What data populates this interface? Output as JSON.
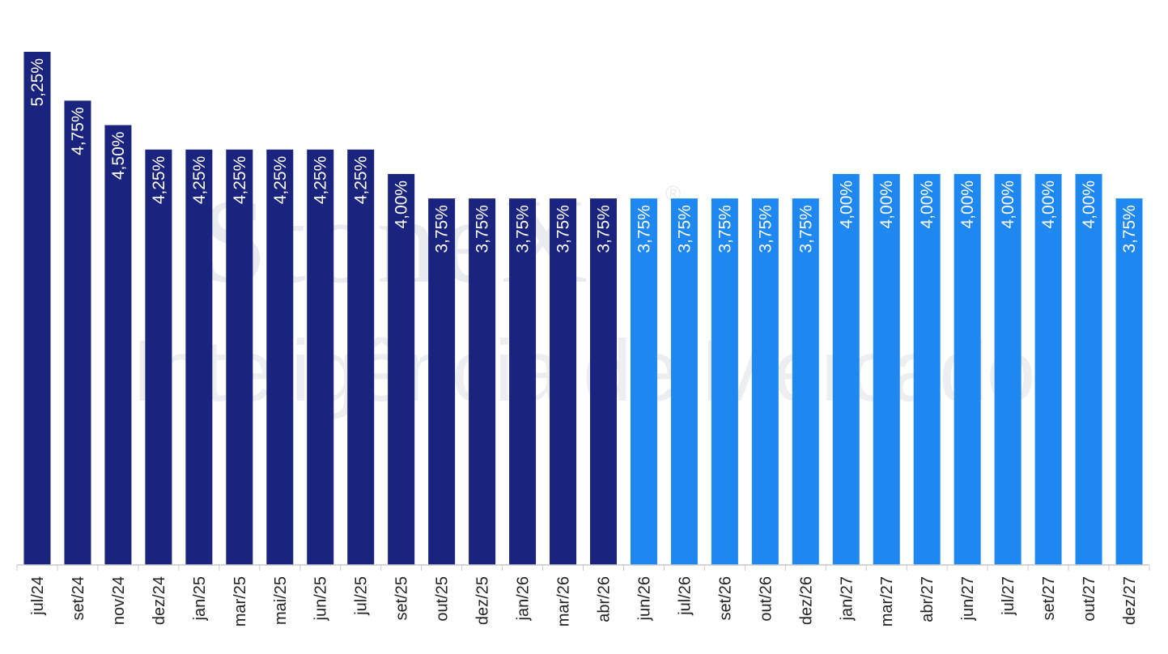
{
  "watermark": {
    "logo": "StoneX",
    "registered": "®",
    "subtitle": "Inteligência de Mercado"
  },
  "colors": {
    "historical": "#1a237e",
    "forecast": "#1e88f0",
    "axis": "#c8c8c8"
  },
  "chart_data": {
    "type": "bar",
    "title": "",
    "xlabel": "",
    "ylabel": "",
    "ylim": [
      0,
      5.25
    ],
    "grid": false,
    "categories": [
      "jul/24",
      "set/24",
      "nov/24",
      "dez/24",
      "jan/25",
      "mar/25",
      "mai/25",
      "jun/25",
      "jul/25",
      "set/25",
      "out/25",
      "dez/25",
      "jan/26",
      "mar/26",
      "abr/26",
      "jun/26",
      "jul/26",
      "set/26",
      "out/26",
      "dez/26",
      "jan/27",
      "mar/27",
      "abr/27",
      "jun/27",
      "jul/27",
      "set/27",
      "out/27",
      "dez/27"
    ],
    "values": [
      5.25,
      4.75,
      4.5,
      4.25,
      4.25,
      4.25,
      4.25,
      4.25,
      4.25,
      4.0,
      3.75,
      3.75,
      3.75,
      3.75,
      3.75,
      3.75,
      3.75,
      3.75,
      3.75,
      3.75,
      4.0,
      4.0,
      4.0,
      4.0,
      4.0,
      4.0,
      4.0,
      3.75
    ],
    "data_labels": [
      "5,25%",
      "4,75%",
      "4,50%",
      "4,25%",
      "4,25%",
      "4,25%",
      "4,25%",
      "4,25%",
      "4,25%",
      "4,00%",
      "3,75%",
      "3,75%",
      "3,75%",
      "3,75%",
      "3,75%",
      "3,75%",
      "3,75%",
      "3,75%",
      "3,75%",
      "3,75%",
      "4,00%",
      "4,00%",
      "4,00%",
      "4,00%",
      "4,00%",
      "4,00%",
      "4,00%",
      "3,75%"
    ],
    "bar_kind": [
      "historical",
      "historical",
      "historical",
      "historical",
      "historical",
      "historical",
      "historical",
      "historical",
      "historical",
      "historical",
      "historical",
      "historical",
      "historical",
      "historical",
      "historical",
      "forecast",
      "forecast",
      "forecast",
      "forecast",
      "forecast",
      "forecast",
      "forecast",
      "forecast",
      "forecast",
      "forecast",
      "forecast",
      "forecast",
      "forecast"
    ]
  }
}
